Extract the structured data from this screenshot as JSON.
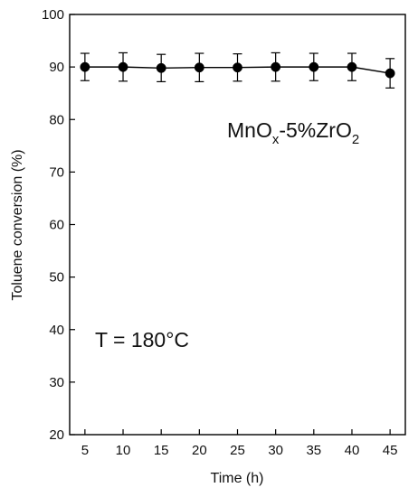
{
  "chart_data": {
    "type": "line",
    "title": "",
    "xlabel": "Time (h)",
    "ylabel": "Toluene conversion (%)",
    "xlim": [
      3,
      47
    ],
    "ylim": [
      20,
      100
    ],
    "xticks": [
      5,
      10,
      15,
      20,
      25,
      30,
      35,
      40,
      45
    ],
    "yticks": [
      20,
      30,
      40,
      50,
      60,
      70,
      80,
      90,
      100
    ],
    "grid": false,
    "legend": "none",
    "series": [
      {
        "x": [
          5,
          10,
          15,
          20,
          25,
          30,
          35,
          40,
          45
        ],
        "y": [
          90,
          90,
          89.8,
          89.9,
          89.9,
          90,
          90,
          90,
          88.8
        ],
        "error": [
          2.6,
          2.7,
          2.6,
          2.7,
          2.6,
          2.7,
          2.6,
          2.6,
          2.8
        ],
        "color": "#000000",
        "marker": "circle"
      }
    ],
    "annotations": {
      "catalyst": {
        "prefix": "MnO",
        "sub1": "x",
        "middle": "-5%ZrO",
        "sub2": "2"
      },
      "temperature": "T = 180°C"
    }
  }
}
